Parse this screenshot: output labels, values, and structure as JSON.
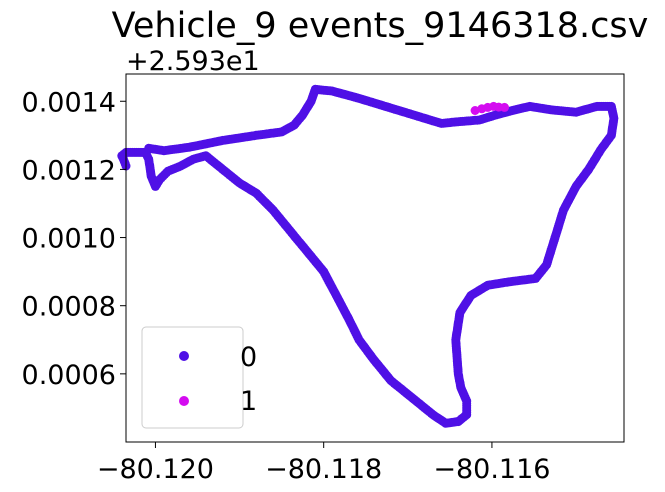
{
  "chart_data": {
    "type": "scatter",
    "title": "Vehicle_9 events_9146318.csv",
    "xlabel": "",
    "ylabel": "",
    "y_offset_label": "+2.593e1",
    "y_offset": 25.93,
    "xlim": [
      -80.12035,
      -80.11443
    ],
    "ylim": [
      25.9304,
      25.93148
    ],
    "x_ticks": [
      -80.12,
      -80.118,
      -80.116
    ],
    "x_tick_labels": [
      "−80.120",
      "−80.118",
      "−80.116"
    ],
    "y_ticks": [
      0.0006,
      0.0008,
      0.001,
      0.0012,
      0.0014
    ],
    "y_tick_labels": [
      "0.0006",
      "0.0008",
      "0.0010",
      "0.0012",
      "0.0014"
    ],
    "grid": false,
    "legend_position": "lower-left",
    "series": [
      {
        "name": "0",
        "color": "#4f10e6",
        "marker": "circle",
        "path": [
          [
            -80.12008,
            25.931262
          ],
          [
            -80.1199,
            25.931255
          ],
          [
            -80.1196,
            25.931265
          ],
          [
            -80.1192,
            25.931285
          ],
          [
            -80.1188,
            25.9313
          ],
          [
            -80.1185,
            25.93131
          ],
          [
            -80.11835,
            25.93133
          ],
          [
            -80.11825,
            25.93136
          ],
          [
            -80.11815,
            25.9314
          ],
          [
            -80.1181,
            25.931435
          ],
          [
            -80.1179,
            25.93143
          ],
          [
            -80.1176,
            25.93141
          ],
          [
            -80.1172,
            25.93138
          ],
          [
            -80.1168,
            25.93135
          ],
          [
            -80.1166,
            25.931335
          ],
          [
            -80.1164,
            25.93134
          ],
          [
            -80.11615,
            25.931345
          ],
          [
            -80.11595,
            25.93136
          ],
          [
            -80.11577,
            25.931372
          ],
          [
            -80.11555,
            25.931385
          ],
          [
            -80.1153,
            25.931375
          ],
          [
            -80.115,
            25.931368
          ],
          [
            -80.11475,
            25.931385
          ],
          [
            -80.11458,
            25.931385
          ],
          [
            -80.11455,
            25.93135
          ],
          [
            -80.11458,
            25.9313
          ],
          [
            -80.1147,
            25.93126
          ],
          [
            -80.11485,
            25.9312
          ],
          [
            -80.115,
            25.93115
          ],
          [
            -80.11515,
            25.93108
          ],
          [
            -80.11525,
            25.931
          ],
          [
            -80.11535,
            25.93092
          ],
          [
            -80.11548,
            25.93088
          ],
          [
            -80.1158,
            25.93087
          ],
          [
            -80.11605,
            25.93086
          ],
          [
            -80.11625,
            25.93083
          ],
          [
            -80.11638,
            25.93078
          ],
          [
            -80.11643,
            25.9307
          ],
          [
            -80.1164,
            25.9306
          ],
          [
            -80.11637,
            25.93056
          ],
          [
            -80.1163,
            25.93052
          ],
          [
            -80.1163,
            25.93048
          ],
          [
            -80.1164,
            25.93046
          ],
          [
            -80.11655,
            25.930455
          ],
          [
            -80.1167,
            25.93048
          ],
          [
            -80.1169,
            25.93052
          ],
          [
            -80.1172,
            25.93058
          ],
          [
            -80.1174,
            25.93064
          ],
          [
            -80.11758,
            25.9307
          ],
          [
            -80.1177,
            25.93076
          ],
          [
            -80.11785,
            25.93083
          ],
          [
            -80.118,
            25.9309
          ],
          [
            -80.1182,
            25.93096
          ],
          [
            -80.1184,
            25.93102
          ],
          [
            -80.1186,
            25.93108
          ],
          [
            -80.1188,
            25.93113
          ],
          [
            -80.119,
            25.93116
          ],
          [
            -80.1192,
            25.9312
          ],
          [
            -80.1194,
            25.93124
          ],
          [
            -80.11955,
            25.93123
          ],
          [
            -80.1197,
            25.93121
          ],
          [
            -80.11985,
            25.931195
          ],
          [
            -80.11995,
            25.93117
          ],
          [
            -80.12,
            25.93115
          ],
          [
            -80.12005,
            25.93118
          ],
          [
            -80.12008,
            25.93123
          ],
          [
            -80.12012,
            25.93125
          ],
          [
            -80.12035,
            25.93125
          ],
          [
            -80.1204,
            25.93124
          ],
          [
            -80.12038,
            25.93123
          ],
          [
            -80.12035,
            25.93121
          ]
        ]
      },
      {
        "name": "1",
        "color": "#d40cf0",
        "marker": "circle",
        "points": [
          [
            -80.1162,
            25.931373
          ],
          [
            -80.11612,
            25.931378
          ],
          [
            -80.11605,
            25.931382
          ],
          [
            -80.11598,
            25.931385
          ],
          [
            -80.11592,
            25.931383
          ],
          [
            -80.11585,
            25.931382
          ]
        ]
      }
    ]
  }
}
